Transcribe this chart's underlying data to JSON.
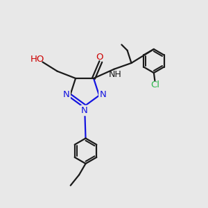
{
  "bg_color": "#e8e8e8",
  "bond_color": "#1a1a1a",
  "N_color": "#1414e0",
  "O_color": "#cc0000",
  "Cl_color": "#2db84b",
  "line_width": 1.6,
  "font_size": 9.5,
  "fig_w": 3.0,
  "fig_h": 3.0,
  "dpi": 100,
  "xlim": [
    0,
    10
  ],
  "ylim": [
    0,
    10
  ]
}
